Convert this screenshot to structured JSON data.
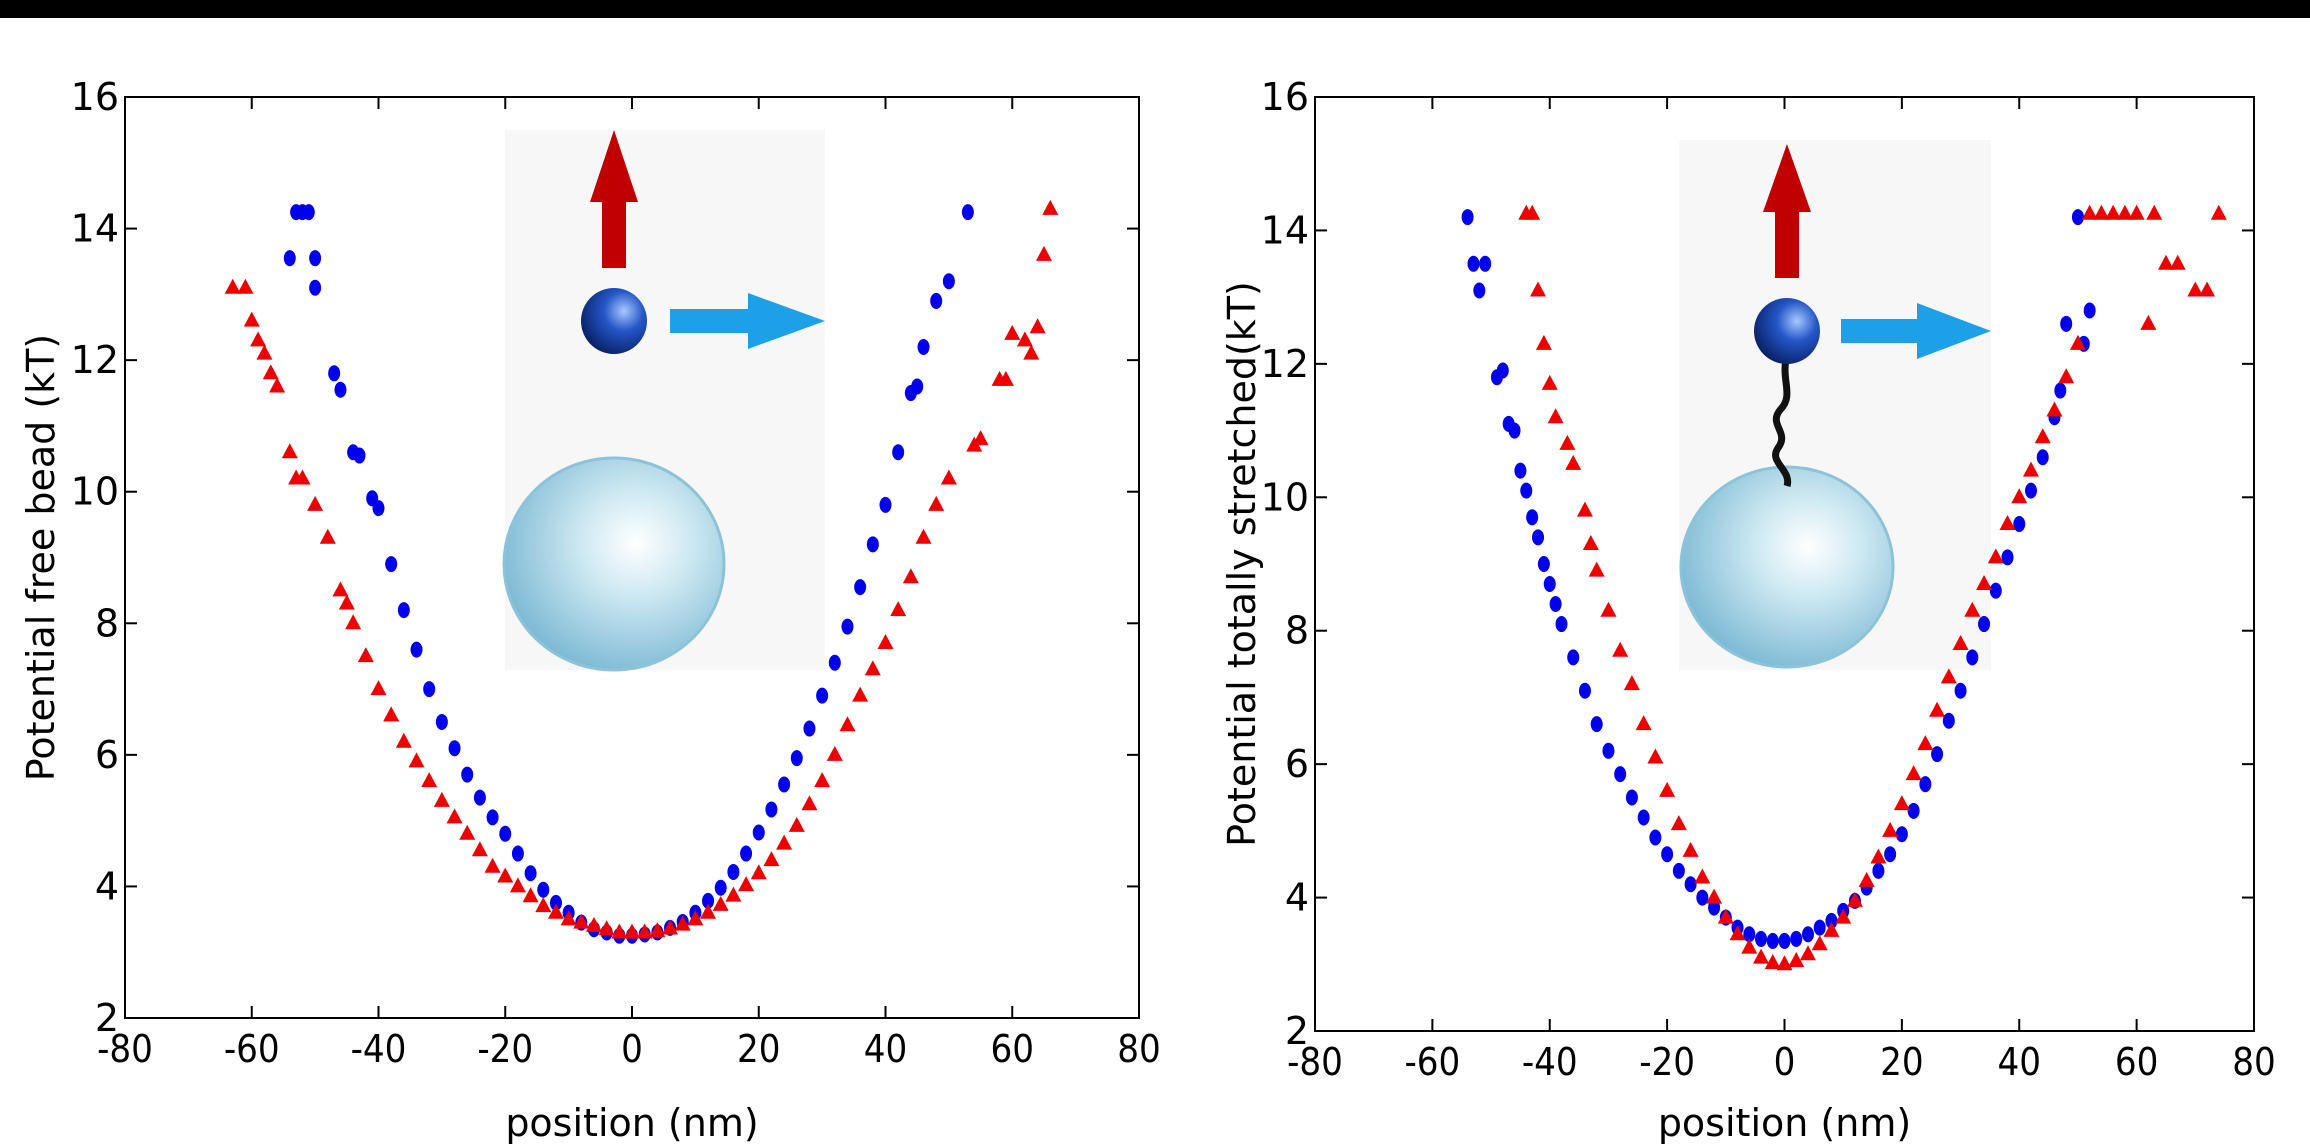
{
  "chart_data": [
    {
      "type": "scatter",
      "xlabel": "position (nm)",
      "ylabel": "Potential free bead (kT)",
      "xlim": [
        -80,
        80
      ],
      "ylim": [
        2,
        16
      ],
      "xticks": [
        -80,
        -60,
        -40,
        -20,
        0,
        20,
        40,
        60,
        80
      ],
      "yticks": [
        2,
        4,
        6,
        8,
        10,
        12,
        14,
        16
      ],
      "series": [
        {
          "color": "#0000ee",
          "marker": "circle",
          "x": [
            -54,
            -53,
            -52,
            -51,
            -50,
            -50,
            -47,
            -46,
            -44,
            -43,
            -41,
            -40,
            -38,
            -36,
            -34,
            -32,
            -30,
            -28,
            -26,
            -24,
            -22,
            -20,
            -18,
            -16,
            -14,
            -12,
            -10,
            -8,
            -6,
            -4,
            -2,
            0,
            2,
            4,
            6,
            8,
            10,
            12,
            14,
            16,
            18,
            20,
            22,
            24,
            26,
            28,
            30,
            32,
            34,
            36,
            38,
            40,
            42,
            44,
            45,
            46,
            48,
            50,
            53
          ],
          "values": [
            13.55,
            14.25,
            14.25,
            14.25,
            13.55,
            13.1,
            11.8,
            11.55,
            10.6,
            10.55,
            9.9,
            9.75,
            8.9,
            8.2,
            7.6,
            7.0,
            6.5,
            6.1,
            5.7,
            5.35,
            5.05,
            4.8,
            4.5,
            4.2,
            3.95,
            3.75,
            3.6,
            3.45,
            3.35,
            3.3,
            3.25,
            3.25,
            3.27,
            3.3,
            3.37,
            3.46,
            3.6,
            3.78,
            3.98,
            4.22,
            4.5,
            4.82,
            5.17,
            5.55,
            5.95,
            6.4,
            6.9,
            7.4,
            7.95,
            8.55,
            9.2,
            9.8,
            10.6,
            11.5,
            11.6,
            12.2,
            12.9,
            13.2,
            14.25
          ]
        },
        {
          "color": "#ee0000",
          "marker": "triangle",
          "x": [
            -63,
            -61,
            -60,
            -59,
            -58,
            -57,
            -56,
            -54,
            -53,
            -52,
            -50,
            -48,
            -46,
            -45,
            -44,
            -42,
            -40,
            -38,
            -36,
            -34,
            -32,
            -30,
            -28,
            -26,
            -24,
            -22,
            -20,
            -18,
            -16,
            -14,
            -12,
            -10,
            -8,
            -6,
            -4,
            -2,
            0,
            2,
            4,
            6,
            8,
            10,
            12,
            14,
            16,
            18,
            20,
            22,
            24,
            26,
            28,
            30,
            32,
            34,
            36,
            38,
            40,
            42,
            44,
            46,
            48,
            50,
            54,
            55,
            58,
            59,
            60,
            62,
            63,
            64,
            65,
            66
          ],
          "values": [
            13.1,
            13.1,
            12.6,
            12.3,
            12.1,
            11.8,
            11.6,
            10.6,
            10.2,
            10.2,
            9.8,
            9.3,
            8.5,
            8.3,
            8.0,
            7.5,
            7.0,
            6.6,
            6.2,
            5.9,
            5.6,
            5.3,
            5.05,
            4.8,
            4.55,
            4.3,
            4.15,
            4.0,
            3.85,
            3.7,
            3.6,
            3.5,
            3.45,
            3.4,
            3.35,
            3.3,
            3.3,
            3.3,
            3.32,
            3.36,
            3.42,
            3.5,
            3.6,
            3.72,
            3.86,
            4.02,
            4.2,
            4.4,
            4.65,
            4.92,
            5.25,
            5.6,
            6.0,
            6.45,
            6.9,
            7.3,
            7.7,
            8.2,
            8.7,
            9.3,
            9.8,
            10.2,
            10.7,
            10.8,
            11.7,
            11.7,
            12.4,
            12.3,
            12.1,
            12.5,
            13.6,
            14.3
          ]
        }
      ]
    },
    {
      "type": "scatter",
      "xlabel": "position (nm)",
      "ylabel": "Potential totally stretched(kT)",
      "xlim": [
        -80,
        80
      ],
      "ylim": [
        2,
        16
      ],
      "xticks": [
        -80,
        -60,
        -40,
        -20,
        0,
        20,
        40,
        60,
        80
      ],
      "yticks": [
        2,
        4,
        6,
        8,
        10,
        12,
        14,
        16
      ],
      "series": [
        {
          "color": "#0000ee",
          "marker": "circle",
          "x": [
            -54,
            -53,
            -52,
            -51,
            -49,
            -48,
            -47,
            -46,
            -45,
            -44,
            -43,
            -42,
            -41,
            -40,
            -39,
            -38,
            -36,
            -34,
            -32,
            -30,
            -28,
            -26,
            -24,
            -22,
            -20,
            -18,
            -16,
            -14,
            -12,
            -10,
            -8,
            -6,
            -4,
            -2,
            0,
            2,
            4,
            6,
            8,
            10,
            12,
            14,
            16,
            18,
            20,
            22,
            24,
            26,
            28,
            30,
            32,
            34,
            36,
            38,
            40,
            42,
            44,
            46,
            47,
            48,
            50,
            51,
            52
          ],
          "values": [
            14.2,
            13.5,
            13.1,
            13.5,
            11.8,
            11.9,
            11.1,
            11.0,
            10.4,
            10.1,
            9.7,
            9.4,
            9.0,
            8.7,
            8.4,
            8.1,
            7.6,
            7.1,
            6.6,
            6.2,
            5.85,
            5.5,
            5.2,
            4.9,
            4.65,
            4.4,
            4.2,
            4.0,
            3.85,
            3.7,
            3.55,
            3.45,
            3.38,
            3.35,
            3.35,
            3.38,
            3.45,
            3.55,
            3.65,
            3.8,
            3.95,
            4.15,
            4.4,
            4.65,
            4.95,
            5.3,
            5.7,
            6.15,
            6.65,
            7.1,
            7.6,
            8.1,
            8.6,
            9.1,
            9.6,
            10.1,
            10.6,
            11.2,
            11.6,
            12.6,
            14.2,
            12.3,
            12.8
          ]
        },
        {
          "color": "#ee0000",
          "marker": "triangle",
          "x": [
            -44,
            -43,
            -42,
            -41,
            -40,
            -39,
            -37,
            -36,
            -34,
            -33,
            -32,
            -30,
            -28,
            -26,
            -24,
            -22,
            -20,
            -18,
            -16,
            -14,
            -12,
            -10,
            -8,
            -6,
            -4,
            -2,
            0,
            2,
            4,
            6,
            8,
            10,
            12,
            14,
            16,
            18,
            20,
            22,
            24,
            26,
            28,
            30,
            32,
            34,
            36,
            38,
            40,
            42,
            44,
            46,
            48,
            50,
            52,
            54,
            56,
            58,
            60,
            62,
            63,
            65,
            67,
            70,
            72,
            74
          ],
          "values": [
            14.25,
            14.25,
            13.1,
            12.3,
            11.7,
            11.2,
            10.8,
            10.5,
            9.8,
            9.3,
            8.9,
            8.3,
            7.7,
            7.2,
            6.6,
            6.1,
            5.6,
            5.1,
            4.7,
            4.3,
            4.0,
            3.7,
            3.45,
            3.25,
            3.1,
            3.02,
            3.0,
            3.05,
            3.15,
            3.3,
            3.5,
            3.7,
            3.95,
            4.25,
            4.6,
            5.0,
            5.4,
            5.85,
            6.3,
            6.8,
            7.3,
            7.8,
            8.3,
            8.7,
            9.1,
            9.6,
            10.0,
            10.4,
            10.9,
            11.3,
            11.8,
            12.3,
            14.25,
            14.25,
            14.25,
            14.25,
            14.25,
            12.6,
            14.25,
            13.5,
            13.5,
            13.1,
            13.1,
            14.25
          ]
        }
      ]
    }
  ]
}
